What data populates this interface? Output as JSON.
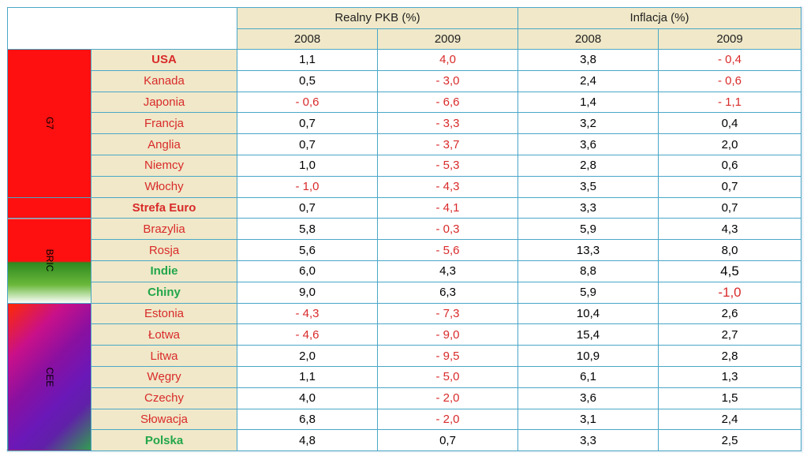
{
  "header": {
    "gdp_label": "Realny PKB (%)",
    "inflation_label": "Inflacja (%)",
    "years": [
      "2008",
      "2009",
      "2008",
      "2009"
    ]
  },
  "groups": {
    "g7": "G7",
    "bric": "BRIC",
    "cee": "CEE"
  },
  "rows": [
    {
      "name": "USA",
      "gdp2008": "1,1",
      "gdp2009": "4,0",
      "inf2008": "3,8",
      "inf2009": "- 0,4"
    },
    {
      "name": "Kanada",
      "gdp2008": "0,5",
      "gdp2009": "- 3,0",
      "inf2008": "2,4",
      "inf2009": "- 0,6"
    },
    {
      "name": "Japonia",
      "gdp2008": "- 0,6",
      "gdp2009": "- 6,6",
      "inf2008": "1,4",
      "inf2009": "- 1,1"
    },
    {
      "name": "Francja",
      "gdp2008": "0,7",
      "gdp2009": "- 3,3",
      "inf2008": "3,2",
      "inf2009": "0,4"
    },
    {
      "name": "Anglia",
      "gdp2008": "0,7",
      "gdp2009": "- 3,7",
      "inf2008": "3,6",
      "inf2009": "2,0"
    },
    {
      "name": "Niemcy",
      "gdp2008": "1,0",
      "gdp2009": "- 5,3",
      "inf2008": "2,8",
      "inf2009": "0,6"
    },
    {
      "name": "Włochy",
      "gdp2008": "- 1,0",
      "gdp2009": "- 4,3",
      "inf2008": "3,5",
      "inf2009": "0,7"
    },
    {
      "name": "Strefa Euro",
      "gdp2008": "0,7",
      "gdp2009": "- 4,1",
      "inf2008": "3,3",
      "inf2009": "0,7"
    },
    {
      "name": "Brazylia",
      "gdp2008": "5,8",
      "gdp2009": "- 0,3",
      "inf2008": "5,9",
      "inf2009": "4,3"
    },
    {
      "name": "Rosja",
      "gdp2008": "5,6",
      "gdp2009": "- 5,6",
      "inf2008": "13,3",
      "inf2009": "8,0"
    },
    {
      "name": "Indie",
      "gdp2008": "6,0",
      "gdp2009": "4,3",
      "inf2008": "8,8",
      "inf2009": "4,5"
    },
    {
      "name": "Chiny",
      "gdp2008": "9,0",
      "gdp2009": "6,3",
      "inf2008": "5,9",
      "inf2009": "-1,0"
    },
    {
      "name": "Estonia",
      "gdp2008": "- 4,3",
      "gdp2009": "- 7,3",
      "inf2008": "10,4",
      "inf2009": "2,6"
    },
    {
      "name": "Łotwa",
      "gdp2008": "- 4,6",
      "gdp2009": "- 9,0",
      "inf2008": "15,4",
      "inf2009": "2,7"
    },
    {
      "name": "Litwa",
      "gdp2008": "2,0",
      "gdp2009": "- 9,5",
      "inf2008": "10,9",
      "inf2009": "2,8"
    },
    {
      "name": "Węgry",
      "gdp2008": "1,1",
      "gdp2009": "- 5,0",
      "inf2008": "6,1",
      "inf2009": "1,3"
    },
    {
      "name": "Czechy",
      "gdp2008": "4,0",
      "gdp2009": "- 2,0",
      "inf2008": "3,6",
      "inf2009": "1,5"
    },
    {
      "name": "Słowacja",
      "gdp2008": "6,8",
      "gdp2009": "- 2,0",
      "inf2008": "3,1",
      "inf2009": "2,4"
    },
    {
      "name": "Polska",
      "gdp2008": "4,8",
      "gdp2009": "0,7",
      "inf2008": "3,3",
      "inf2009": "2,5"
    }
  ],
  "colors": {
    "negative": "#d92a2a",
    "green_names": "#22a64a",
    "header_bg": "#f0e8c8",
    "grid": "#4aa7c8"
  }
}
